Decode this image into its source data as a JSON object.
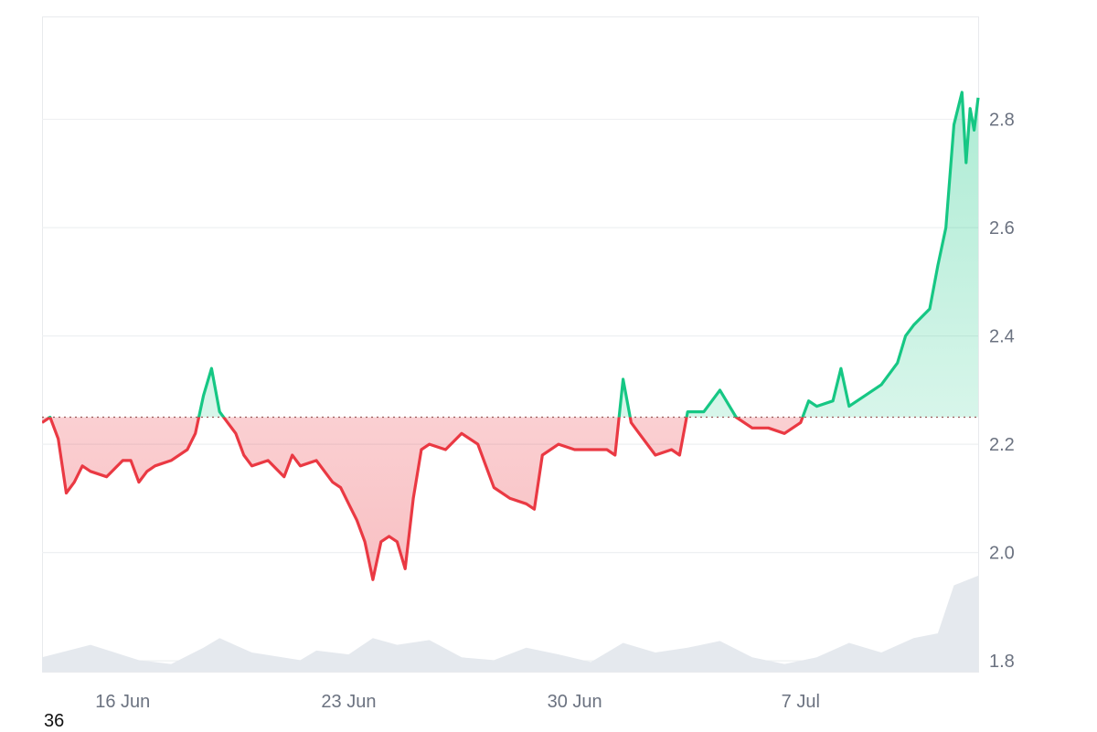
{
  "chart_data": {
    "type": "area",
    "title": "",
    "xlabel": "",
    "ylabel": "",
    "baseline": 2.25,
    "ylim": [
      1.78,
      2.99
    ],
    "y_ticks": [
      "1.8",
      "2.0",
      "2.2",
      "2.4",
      "2.6",
      "2.8"
    ],
    "y_tick_values": [
      1.8,
      2.0,
      2.2,
      2.4,
      2.6,
      2.8
    ],
    "x_range": [
      "2024-06-13T12:00",
      "2024-07-12T12:00"
    ],
    "x_ticks": [
      {
        "label": "16 Jun",
        "date": "2024-06-16"
      },
      {
        "label": "23 Jun",
        "date": "2024-06-23"
      },
      {
        "label": "30 Jun",
        "date": "2024-06-30"
      },
      {
        "label": "7 Jul",
        "date": "2024-07-07"
      }
    ],
    "grid": true,
    "colors": {
      "up": "#16c784",
      "down": "#ea3943",
      "up_fill": "#16c784",
      "down_fill": "#ea3943",
      "volume": "#e5e9ee",
      "grid": "#eef0f2",
      "baseline": "#9a5a5a"
    },
    "series": [
      {
        "values": [
          [
            "2024-06-13T12:00",
            2.24
          ],
          [
            "2024-06-13T18:00",
            2.25
          ],
          [
            "2024-06-14T00:00",
            2.21
          ],
          [
            "2024-06-14T06:00",
            2.11
          ],
          [
            "2024-06-14T12:00",
            2.13
          ],
          [
            "2024-06-14T18:00",
            2.16
          ],
          [
            "2024-06-15T00:00",
            2.15
          ],
          [
            "2024-06-15T12:00",
            2.14
          ],
          [
            "2024-06-16T00:00",
            2.17
          ],
          [
            "2024-06-16T06:00",
            2.17
          ],
          [
            "2024-06-16T12:00",
            2.13
          ],
          [
            "2024-06-16T18:00",
            2.15
          ],
          [
            "2024-06-17T00:00",
            2.16
          ],
          [
            "2024-06-17T12:00",
            2.17
          ],
          [
            "2024-06-18T00:00",
            2.19
          ],
          [
            "2024-06-18T06:00",
            2.22
          ],
          [
            "2024-06-18T12:00",
            2.29
          ],
          [
            "2024-06-18T18:00",
            2.34
          ],
          [
            "2024-06-19T00:00",
            2.26
          ],
          [
            "2024-06-19T06:00",
            2.24
          ],
          [
            "2024-06-19T12:00",
            2.22
          ],
          [
            "2024-06-19T18:00",
            2.18
          ],
          [
            "2024-06-20T00:00",
            2.16
          ],
          [
            "2024-06-20T12:00",
            2.17
          ],
          [
            "2024-06-21T00:00",
            2.14
          ],
          [
            "2024-06-21T06:00",
            2.18
          ],
          [
            "2024-06-21T12:00",
            2.16
          ],
          [
            "2024-06-22T00:00",
            2.17
          ],
          [
            "2024-06-22T12:00",
            2.13
          ],
          [
            "2024-06-22T18:00",
            2.12
          ],
          [
            "2024-06-23T00:00",
            2.09
          ],
          [
            "2024-06-23T06:00",
            2.06
          ],
          [
            "2024-06-23T12:00",
            2.02
          ],
          [
            "2024-06-23T18:00",
            1.95
          ],
          [
            "2024-06-24T00:00",
            2.02
          ],
          [
            "2024-06-24T06:00",
            2.03
          ],
          [
            "2024-06-24T12:00",
            2.02
          ],
          [
            "2024-06-24T18:00",
            1.97
          ],
          [
            "2024-06-25T00:00",
            2.1
          ],
          [
            "2024-06-25T06:00",
            2.19
          ],
          [
            "2024-06-25T12:00",
            2.2
          ],
          [
            "2024-06-26T00:00",
            2.19
          ],
          [
            "2024-06-26T12:00",
            2.22
          ],
          [
            "2024-06-27T00:00",
            2.2
          ],
          [
            "2024-06-27T12:00",
            2.12
          ],
          [
            "2024-06-28T00:00",
            2.1
          ],
          [
            "2024-06-28T12:00",
            2.09
          ],
          [
            "2024-06-28T18:00",
            2.08
          ],
          [
            "2024-06-29T00:00",
            2.18
          ],
          [
            "2024-06-29T12:00",
            2.2
          ],
          [
            "2024-06-30T00:00",
            2.19
          ],
          [
            "2024-06-30T12:00",
            2.19
          ],
          [
            "2024-07-01T00:00",
            2.19
          ],
          [
            "2024-07-01T06:00",
            2.18
          ],
          [
            "2024-07-01T12:00",
            2.32
          ],
          [
            "2024-07-01T18:00",
            2.24
          ],
          [
            "2024-07-02T00:00",
            2.22
          ],
          [
            "2024-07-02T12:00",
            2.18
          ],
          [
            "2024-07-03T00:00",
            2.19
          ],
          [
            "2024-07-03T06:00",
            2.18
          ],
          [
            "2024-07-03T12:00",
            2.26
          ],
          [
            "2024-07-04T00:00",
            2.26
          ],
          [
            "2024-07-04T12:00",
            2.3
          ],
          [
            "2024-07-05T00:00",
            2.25
          ],
          [
            "2024-07-05T12:00",
            2.23
          ],
          [
            "2024-07-06T00:00",
            2.23
          ],
          [
            "2024-07-06T12:00",
            2.22
          ],
          [
            "2024-07-07T00:00",
            2.24
          ],
          [
            "2024-07-07T06:00",
            2.28
          ],
          [
            "2024-07-07T12:00",
            2.27
          ],
          [
            "2024-07-08T00:00",
            2.28
          ],
          [
            "2024-07-08T06:00",
            2.34
          ],
          [
            "2024-07-08T12:00",
            2.27
          ],
          [
            "2024-07-09T00:00",
            2.29
          ],
          [
            "2024-07-09T12:00",
            2.31
          ],
          [
            "2024-07-10T00:00",
            2.35
          ],
          [
            "2024-07-10T06:00",
            2.4
          ],
          [
            "2024-07-10T12:00",
            2.42
          ],
          [
            "2024-07-11T00:00",
            2.45
          ],
          [
            "2024-07-11T06:00",
            2.53
          ],
          [
            "2024-07-11T12:00",
            2.6
          ],
          [
            "2024-07-11T18:00",
            2.79
          ],
          [
            "2024-07-12T00:00",
            2.85
          ],
          [
            "2024-07-12T03:00",
            2.72
          ],
          [
            "2024-07-12T06:00",
            2.82
          ],
          [
            "2024-07-12T09:00",
            2.78
          ],
          [
            "2024-07-12T12:00",
            2.84
          ]
        ]
      }
    ],
    "volume": [
      [
        "2024-06-13T12:00",
        0.15
      ],
      [
        "2024-06-15T00:00",
        0.28
      ],
      [
        "2024-06-16T12:00",
        0.12
      ],
      [
        "2024-06-17T12:00",
        0.08
      ],
      [
        "2024-06-18T12:00",
        0.25
      ],
      [
        "2024-06-19T00:00",
        0.35
      ],
      [
        "2024-06-20T00:00",
        0.2
      ],
      [
        "2024-06-21T12:00",
        0.12
      ],
      [
        "2024-06-22T00:00",
        0.22
      ],
      [
        "2024-06-23T00:00",
        0.18
      ],
      [
        "2024-06-23T18:00",
        0.35
      ],
      [
        "2024-06-24T12:00",
        0.28
      ],
      [
        "2024-06-25T12:00",
        0.33
      ],
      [
        "2024-06-26T12:00",
        0.15
      ],
      [
        "2024-06-27T12:00",
        0.12
      ],
      [
        "2024-06-28T12:00",
        0.25
      ],
      [
        "2024-06-29T12:00",
        0.18
      ],
      [
        "2024-06-30T12:00",
        0.1
      ],
      [
        "2024-07-01T12:00",
        0.3
      ],
      [
        "2024-07-02T12:00",
        0.2
      ],
      [
        "2024-07-03T12:00",
        0.25
      ],
      [
        "2024-07-04T12:00",
        0.32
      ],
      [
        "2024-07-05T12:00",
        0.15
      ],
      [
        "2024-07-06T12:00",
        0.08
      ],
      [
        "2024-07-07T12:00",
        0.15
      ],
      [
        "2024-07-08T12:00",
        0.3
      ],
      [
        "2024-07-09T12:00",
        0.2
      ],
      [
        "2024-07-10T12:00",
        0.35
      ],
      [
        "2024-07-11T06:00",
        0.4
      ],
      [
        "2024-07-11T18:00",
        0.9
      ],
      [
        "2024-07-12T12:00",
        1.0
      ]
    ]
  },
  "footer": {
    "count": "36"
  }
}
